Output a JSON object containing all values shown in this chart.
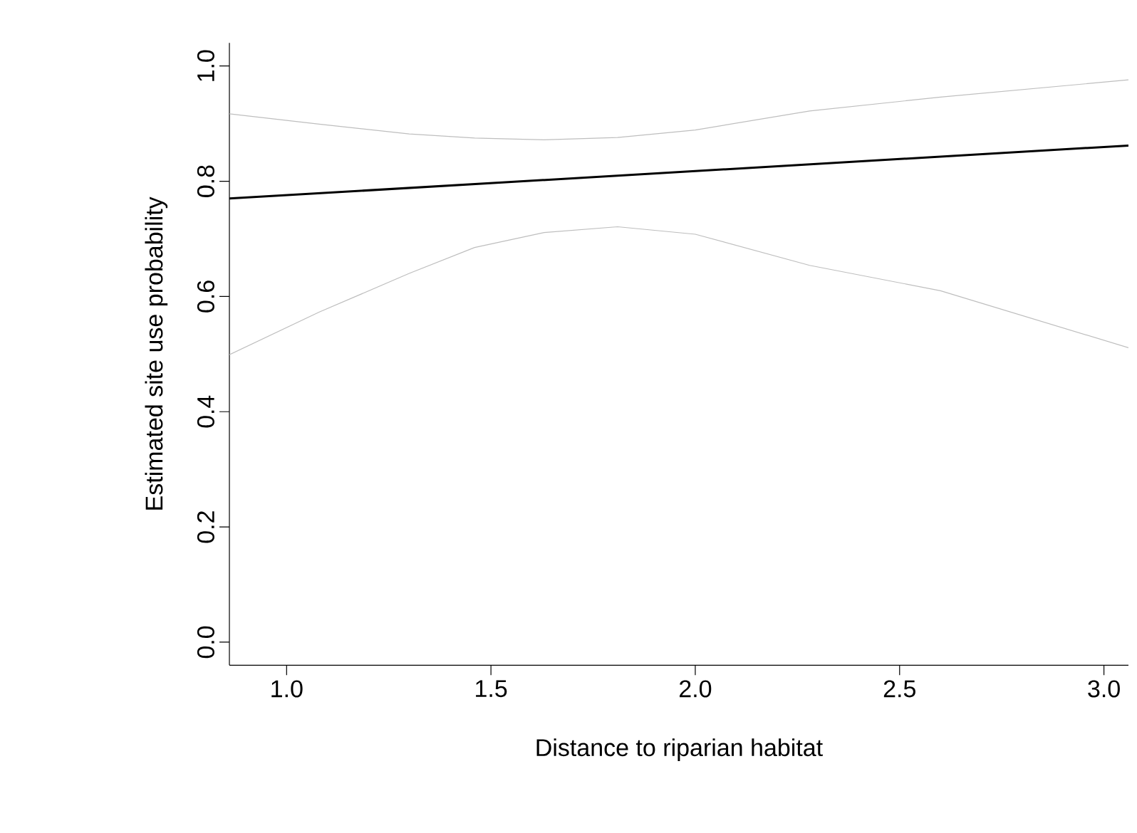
{
  "chart_data": {
    "type": "line",
    "xlabel": "Distance to riparian habitat",
    "ylabel": "Estimated site use probability",
    "xlim": [
      0.86,
      3.06
    ],
    "ylim": [
      -0.04,
      1.04
    ],
    "xticks": [
      {
        "value": 1,
        "label": "1.0"
      },
      {
        "value": 1.5,
        "label": "1.5"
      },
      {
        "value": 2,
        "label": "2.0"
      },
      {
        "value": 2.5,
        "label": "2.5"
      },
      {
        "value": 3,
        "label": "3.0"
      }
    ],
    "yticks": [
      {
        "value": 0,
        "label": "0.0"
      },
      {
        "value": 0.2,
        "label": "0.2"
      },
      {
        "value": 0.4,
        "label": "0.4"
      },
      {
        "value": 0.6,
        "label": "0.6"
      },
      {
        "value": 0.8,
        "label": "0.8"
      },
      {
        "value": 1,
        "label": "1.0"
      }
    ],
    "grid": false,
    "marker": "none",
    "line_style": "solid",
    "series": [
      {
        "color": "#bebebe",
        "x": [
          0.86,
          1.08,
          1.3,
          1.46,
          1.63,
          1.81,
          2.0,
          2.28,
          2.6,
          3.06
        ],
        "values": [
          0.917,
          0.899,
          0.882,
          0.875,
          0.872,
          0.876,
          0.889,
          0.922,
          0.946,
          0.976
        ]
      },
      {
        "color": "#bebebe",
        "x": [
          0.86,
          1.08,
          1.3,
          1.46,
          1.63,
          1.81,
          2.0,
          2.28,
          2.6,
          3.06
        ],
        "values": [
          0.499,
          0.573,
          0.64,
          0.685,
          0.711,
          0.721,
          0.708,
          0.654,
          0.61,
          0.511
        ]
      },
      {
        "color": "#000000",
        "x": [
          0.86,
          3.06
        ],
        "values": [
          0.77,
          0.862
        ]
      }
    ]
  }
}
